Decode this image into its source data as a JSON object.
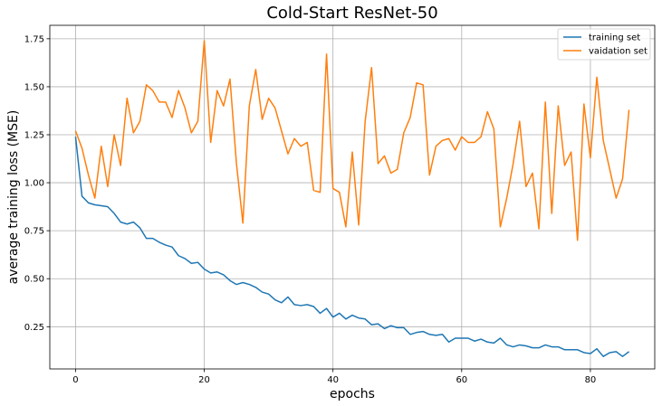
{
  "chart_data": {
    "type": "line",
    "title": "Cold-Start ResNet-50",
    "xlabel": "epochs",
    "ylabel": "average training loss (MSE)",
    "xlim": [
      -4,
      90
    ],
    "ylim": [
      0.03,
      1.82
    ],
    "xticks": [
      0,
      20,
      40,
      60,
      80
    ],
    "yticks": [
      0.25,
      0.5,
      0.75,
      1.0,
      1.25,
      1.5,
      1.75
    ],
    "grid": true,
    "legend_position": "top-right",
    "series": [
      {
        "name": "training set",
        "color": "#1f77b4",
        "x": [
          0,
          1,
          2,
          3,
          4,
          5,
          6,
          7,
          8,
          9,
          10,
          11,
          12,
          13,
          14,
          15,
          16,
          17,
          18,
          19,
          20,
          21,
          22,
          23,
          24,
          25,
          26,
          27,
          28,
          29,
          30,
          31,
          32,
          33,
          34,
          35,
          36,
          37,
          38,
          39,
          40,
          41,
          42,
          43,
          44,
          45,
          46,
          47,
          48,
          49,
          50,
          51,
          52,
          53,
          54,
          55,
          56,
          57,
          58,
          59,
          60,
          61,
          62,
          63,
          64,
          65,
          66,
          67,
          68,
          69,
          70,
          71,
          72,
          73,
          74,
          75,
          76,
          77,
          78,
          79,
          80,
          81,
          82,
          83,
          84,
          85,
          86
        ],
        "values": [
          1.24,
          0.93,
          0.895,
          0.885,
          0.88,
          0.875,
          0.84,
          0.795,
          0.785,
          0.795,
          0.765,
          0.71,
          0.71,
          0.69,
          0.675,
          0.665,
          0.62,
          0.605,
          0.58,
          0.585,
          0.55,
          0.53,
          0.535,
          0.52,
          0.49,
          0.47,
          0.48,
          0.47,
          0.455,
          0.43,
          0.42,
          0.39,
          0.375,
          0.405,
          0.365,
          0.36,
          0.365,
          0.355,
          0.32,
          0.345,
          0.3,
          0.32,
          0.29,
          0.31,
          0.295,
          0.29,
          0.26,
          0.265,
          0.24,
          0.255,
          0.245,
          0.245,
          0.21,
          0.22,
          0.225,
          0.21,
          0.205,
          0.21,
          0.17,
          0.19,
          0.19,
          0.19,
          0.175,
          0.185,
          0.17,
          0.165,
          0.19,
          0.155,
          0.145,
          0.155,
          0.15,
          0.14,
          0.14,
          0.155,
          0.145,
          0.145,
          0.13,
          0.13,
          0.13,
          0.115,
          0.11,
          0.135,
          0.095,
          0.115,
          0.12,
          0.095,
          0.12
        ]
      },
      {
        "name": "vaidation set",
        "color": "#ff7f0e",
        "x": [
          0,
          1,
          2,
          3,
          4,
          5,
          6,
          7,
          8,
          9,
          10,
          11,
          12,
          13,
          14,
          15,
          16,
          17,
          18,
          19,
          20,
          21,
          22,
          23,
          24,
          25,
          26,
          27,
          28,
          29,
          30,
          31,
          32,
          33,
          34,
          35,
          36,
          37,
          38,
          39,
          40,
          41,
          42,
          43,
          44,
          45,
          46,
          47,
          48,
          49,
          50,
          51,
          52,
          53,
          54,
          55,
          56,
          57,
          58,
          59,
          60,
          61,
          62,
          63,
          64,
          65,
          66,
          67,
          68,
          69,
          70,
          71,
          72,
          73,
          74,
          75,
          76,
          77,
          78,
          79,
          80,
          81,
          82,
          83,
          84,
          85,
          86
        ],
        "values": [
          1.27,
          1.18,
          1.04,
          0.92,
          1.19,
          0.98,
          1.25,
          1.09,
          1.44,
          1.26,
          1.32,
          1.51,
          1.48,
          1.42,
          1.42,
          1.34,
          1.48,
          1.39,
          1.26,
          1.32,
          1.74,
          1.21,
          1.48,
          1.4,
          1.54,
          1.1,
          0.79,
          1.4,
          1.59,
          1.33,
          1.44,
          1.39,
          1.27,
          1.15,
          1.23,
          1.19,
          1.21,
          0.96,
          0.95,
          1.67,
          0.97,
          0.95,
          0.77,
          1.16,
          0.78,
          1.32,
          1.6,
          1.1,
          1.14,
          1.05,
          1.07,
          1.26,
          1.34,
          1.52,
          1.51,
          1.04,
          1.19,
          1.22,
          1.23,
          1.17,
          1.24,
          1.21,
          1.21,
          1.24,
          1.37,
          1.28,
          0.77,
          0.92,
          1.1,
          1.32,
          0.98,
          1.05,
          0.76,
          1.42,
          0.84,
          1.4,
          1.09,
          1.16,
          0.7,
          1.41,
          1.13,
          1.55,
          1.22,
          1.07,
          0.92,
          1.02,
          1.38
        ]
      }
    ]
  }
}
